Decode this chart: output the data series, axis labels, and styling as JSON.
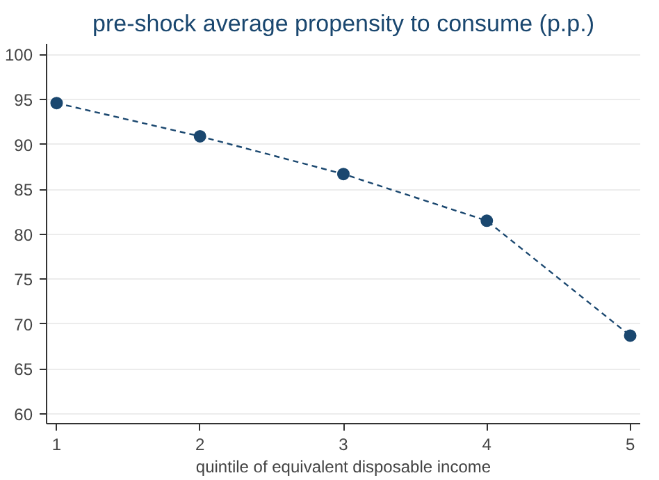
{
  "chart_data": {
    "type": "line",
    "title": "pre-shock average propensity to consume (p.p.)",
    "xlabel": "quintile of equivalent disposable income",
    "x": [
      1,
      2,
      3,
      4,
      5
    ],
    "series": [
      {
        "color": "#1a476f",
        "values": [
          94.6,
          90.9,
          86.7,
          81.5,
          68.7
        ]
      }
    ],
    "xlim": [
      0.93,
      5.07
    ],
    "xticks": [
      1,
      2,
      3,
      4,
      5
    ],
    "ylim": [
      58.9,
      101.2
    ],
    "yticks": [
      60,
      65,
      70,
      75,
      80,
      85,
      90,
      95,
      100
    ],
    "grid": "y",
    "marker": "circle",
    "line_style": "dashed"
  }
}
